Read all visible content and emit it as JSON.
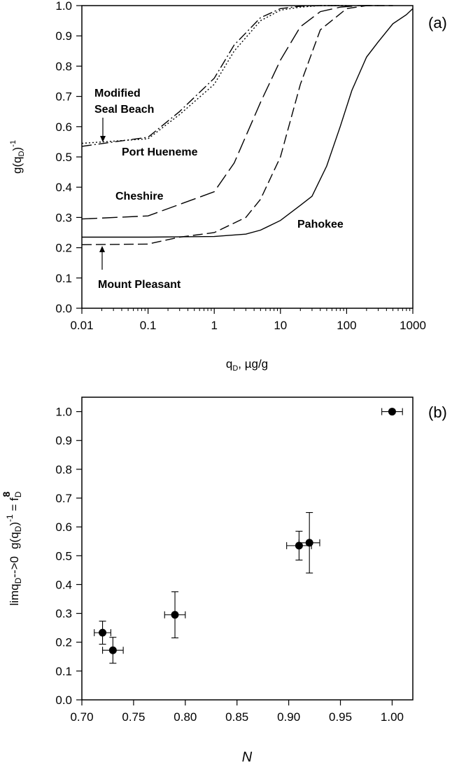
{
  "chart_data": [
    {
      "panel_label": "(a)",
      "type": "line",
      "xlabel_main": "q",
      "xlabel_sub": "D",
      "xlabel_rest": ", µg/g",
      "ylabel_main": "g(q",
      "ylabel_sub": "D",
      "ylabel_rest": ")",
      "ylabel_sup": "-1",
      "xscale": "log",
      "xlim": [
        0.01,
        1000
      ],
      "ylim": [
        0.0,
        1.0
      ],
      "x_tick_labels": [
        "0.01",
        "0.1",
        "1",
        "10",
        "100",
        "1000"
      ],
      "y_tick_labels": [
        "0.0",
        "0.1",
        "0.2",
        "0.3",
        "0.4",
        "0.5",
        "0.6",
        "0.7",
        "0.8",
        "0.9",
        "1.0"
      ],
      "series": [
        {
          "name": "Modified Seal Beach",
          "style": "dotted",
          "x": [
            0.01,
            0.1,
            0.3,
            1,
            2,
            5,
            10,
            20,
            40,
            100
          ],
          "y": [
            0.545,
            0.56,
            0.64,
            0.74,
            0.85,
            0.95,
            0.985,
            0.995,
            1.0,
            1.0
          ]
        },
        {
          "name": "Port Hueneme",
          "style": "dashdot",
          "x": [
            0.01,
            0.1,
            0.3,
            1,
            2,
            5,
            10,
            20,
            40,
            100
          ],
          "y": [
            0.535,
            0.565,
            0.65,
            0.76,
            0.87,
            0.96,
            0.99,
            0.998,
            1.0,
            1.0
          ]
        },
        {
          "name": "Cheshire",
          "style": "longdash",
          "x": [
            0.01,
            0.1,
            1,
            2,
            5,
            10,
            20,
            40,
            80,
            150,
            300
          ],
          "y": [
            0.295,
            0.305,
            0.385,
            0.48,
            0.68,
            0.82,
            0.93,
            0.98,
            0.995,
            1.0,
            1.0
          ]
        },
        {
          "name": "Mount Pleasant",
          "style": "dash",
          "x": [
            0.01,
            0.1,
            0.3,
            1,
            3,
            5,
            10,
            20,
            40,
            100,
            200,
            500
          ],
          "y": [
            0.21,
            0.212,
            0.235,
            0.25,
            0.3,
            0.36,
            0.5,
            0.74,
            0.92,
            0.99,
            1.0,
            1.0
          ]
        },
        {
          "name": "Pahokee",
          "style": "solid",
          "x": [
            0.01,
            0.1,
            1,
            3,
            5,
            10,
            20,
            30,
            50,
            80,
            120,
            200,
            300,
            500,
            800,
            1000
          ],
          "y": [
            0.235,
            0.235,
            0.237,
            0.245,
            0.258,
            0.29,
            0.34,
            0.37,
            0.47,
            0.6,
            0.72,
            0.83,
            0.88,
            0.94,
            0.97,
            0.99
          ]
        }
      ],
      "annotations": [
        {
          "text_lines": [
            "Modified",
            "Seal Beach"
          ],
          "arrow": true
        },
        {
          "text_lines": [
            "Port Hueneme"
          ]
        },
        {
          "text_lines": [
            "Cheshire"
          ]
        },
        {
          "text_lines": [
            "Pahokee"
          ]
        },
        {
          "text_lines": [
            "Mount Pleasant"
          ],
          "arrow": true
        }
      ]
    },
    {
      "panel_label": "(b)",
      "type": "scatter",
      "xlabel": "N",
      "ylabel_prefix": "limq",
      "ylabel_prefix_sub": "D",
      "ylabel_arrow": "-->0",
      "ylabel_main": "g(q",
      "ylabel_sub": "D",
      "ylabel_rest": ")",
      "ylabel_sup": "-1",
      "ylabel_eq": " = f",
      "ylabel_eq_sub": "D",
      "ylabel_eq_sup": "8",
      "xlim": [
        0.7,
        1.02
      ],
      "ylim": [
        0.0,
        1.05
      ],
      "x_tick_labels": [
        "0.70",
        "0.75",
        "0.80",
        "0.85",
        "0.90",
        "0.95",
        "1.00"
      ],
      "y_tick_labels": [
        "0.0",
        "0.1",
        "0.2",
        "0.3",
        "0.4",
        "0.5",
        "0.6",
        "0.7",
        "0.8",
        "0.9",
        "1.0"
      ],
      "points": [
        {
          "x": 0.72,
          "y": 0.233,
          "xerr": 0.008,
          "yerr": 0.04
        },
        {
          "x": 0.73,
          "y": 0.172,
          "xerr": 0.01,
          "yerr": 0.045
        },
        {
          "x": 0.79,
          "y": 0.295,
          "xerr": 0.01,
          "yerr": 0.08
        },
        {
          "x": 0.91,
          "y": 0.535,
          "xerr": 0.012,
          "yerr": 0.05
        },
        {
          "x": 0.92,
          "y": 0.545,
          "xerr": 0.01,
          "yerr": 0.105
        },
        {
          "x": 1.0,
          "y": 1.0,
          "xerr": 0.01,
          "yerr": 0.0
        }
      ]
    }
  ]
}
